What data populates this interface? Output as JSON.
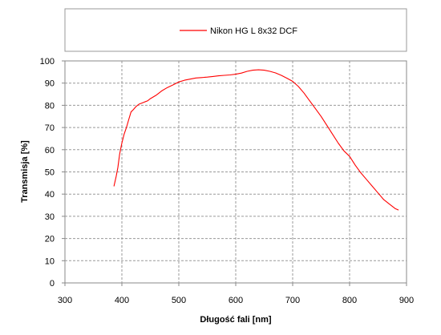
{
  "chart_data": {
    "type": "line",
    "title": "",
    "xlabel": "Długość fali [nm]",
    "ylabel": "Transmisja [%]",
    "xlim": [
      300,
      900
    ],
    "ylim": [
      0,
      100
    ],
    "x_ticks": [
      300,
      400,
      500,
      600,
      700,
      800,
      900
    ],
    "y_ticks": [
      0,
      10,
      20,
      30,
      40,
      50,
      60,
      70,
      80,
      90,
      100
    ],
    "grid": true,
    "grid_style": "dashed",
    "legend_position": "top",
    "series": [
      {
        "name": "Nikon HG L 8x32 DCF",
        "color": "#ff0000",
        "x": [
          386,
          390,
          393,
          396,
          400,
          404,
          408,
          412,
          416,
          420,
          425,
          430,
          435,
          440,
          445,
          450,
          460,
          470,
          480,
          490,
          500,
          510,
          520,
          530,
          540,
          550,
          560,
          570,
          580,
          590,
          600,
          610,
          620,
          630,
          640,
          650,
          660,
          670,
          680,
          690,
          700,
          710,
          720,
          730,
          740,
          750,
          760,
          770,
          780,
          790,
          800,
          810,
          820,
          830,
          840,
          850,
          860,
          870,
          880,
          886
        ],
        "y": [
          43.5,
          48,
          52,
          58,
          63,
          67,
          70,
          73.5,
          77,
          78,
          79.5,
          80.5,
          81,
          81.5,
          82,
          83,
          84.5,
          86.5,
          88,
          89.2,
          90.5,
          91.3,
          91.8,
          92.3,
          92.5,
          92.7,
          93,
          93.3,
          93.5,
          93.7,
          94,
          94.5,
          95.3,
          95.8,
          96,
          95.8,
          95.3,
          94.6,
          93.5,
          92.2,
          90.8,
          88.5,
          85.5,
          82,
          78.5,
          75,
          71,
          67,
          63,
          59.5,
          57,
          53,
          49.5,
          46.5,
          43.5,
          40.5,
          37.5,
          35.5,
          33.5,
          32.8
        ]
      }
    ]
  }
}
